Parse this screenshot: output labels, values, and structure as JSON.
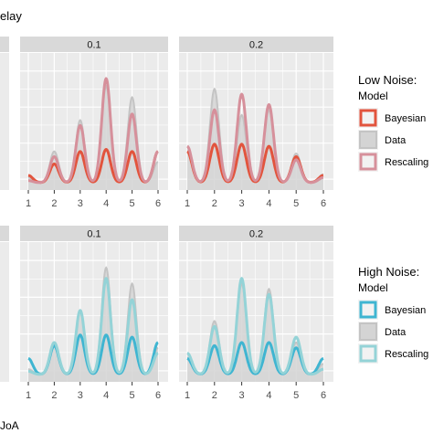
{
  "header_fragment": "elay",
  "x_label_fragment": "JoA",
  "colors": {
    "panel_bg": "#ebebeb",
    "strip_bg": "#d9d9d9",
    "grid": "#ffffff",
    "data_fill": "#d4d4d4",
    "data_line": "#c4c4c4",
    "low_bayesian": "#e2543d",
    "low_rescaling": "#d6909b",
    "high_bayesian": "#3fb5d1",
    "high_rescaling": "#94d3d7"
  },
  "chart_data": [
    {
      "type": "line",
      "row": "Low Noise",
      "facet": "0.1",
      "x_ticks": [
        1,
        2,
        3,
        4,
        5,
        6
      ],
      "xlim": [
        1,
        6
      ],
      "series": [
        {
          "name": "Data",
          "peaks": [
            0.05,
            0.3,
            0.6,
            0.93,
            0.82,
            0.2
          ],
          "style": "area"
        },
        {
          "name": "Bayesian",
          "peaks": [
            0.07,
            0.18,
            0.3,
            0.32,
            0.3,
            0.3
          ]
        },
        {
          "name": "Rescaling",
          "peaks": [
            0.02,
            0.25,
            0.55,
            1.0,
            0.66,
            0.3
          ]
        }
      ]
    },
    {
      "type": "line",
      "row": "Low Noise",
      "facet": "0.2",
      "x_ticks": [
        1,
        2,
        3,
        4,
        5,
        6
      ],
      "xlim": [
        1,
        6
      ],
      "series": [
        {
          "name": "Data",
          "peaks": [
            0.35,
            0.9,
            0.65,
            0.7,
            0.28,
            0.08
          ],
          "style": "area"
        },
        {
          "name": "Bayesian",
          "peaks": [
            0.3,
            0.37,
            0.37,
            0.35,
            0.25,
            0.07
          ]
        },
        {
          "name": "Rescaling",
          "peaks": [
            0.35,
            0.7,
            0.85,
            0.75,
            0.22,
            0.05
          ]
        }
      ]
    },
    {
      "type": "line",
      "row": "High Noise",
      "facet": "0.1",
      "x_ticks": [
        1,
        2,
        3,
        4,
        5,
        6
      ],
      "xlim": [
        1,
        6
      ],
      "series": [
        {
          "name": "Data",
          "peaks": [
            0.05,
            0.3,
            0.6,
            1.0,
            0.85,
            0.25
          ],
          "style": "area"
        },
        {
          "name": "Bayesian",
          "peaks": [
            0.15,
            0.27,
            0.37,
            0.37,
            0.35,
            0.3
          ]
        },
        {
          "name": "Rescaling",
          "peaks": [
            0.03,
            0.3,
            0.6,
            0.9,
            0.7,
            0.2
          ]
        }
      ]
    },
    {
      "type": "line",
      "row": "High Noise",
      "facet": "0.2",
      "x_ticks": [
        1,
        2,
        3,
        4,
        5,
        6
      ],
      "xlim": [
        1,
        6
      ],
      "series": [
        {
          "name": "Data",
          "peaks": [
            0.2,
            0.5,
            0.85,
            0.8,
            0.3,
            0.1
          ],
          "style": "area"
        },
        {
          "name": "Bayesian",
          "peaks": [
            0.15,
            0.27,
            0.3,
            0.3,
            0.25,
            0.15
          ]
        },
        {
          "name": "Rescaling",
          "peaks": [
            0.2,
            0.45,
            0.9,
            0.75,
            0.35,
            0.05
          ]
        }
      ]
    }
  ],
  "legends": [
    {
      "title": "Low Noise:",
      "subtitle": "Model",
      "items": [
        {
          "label": "Bayesian",
          "color": "#e2543d"
        },
        {
          "label": "Data",
          "color": "#c4c4c4"
        },
        {
          "label": "Rescaling",
          "color": "#d6909b"
        }
      ]
    },
    {
      "title": "High Noise:",
      "subtitle": "Model",
      "items": [
        {
          "label": "Bayesian",
          "color": "#3fb5d1"
        },
        {
          "label": "Data",
          "color": "#c4c4c4"
        },
        {
          "label": "Rescaling",
          "color": "#94d3d7"
        }
      ]
    }
  ]
}
